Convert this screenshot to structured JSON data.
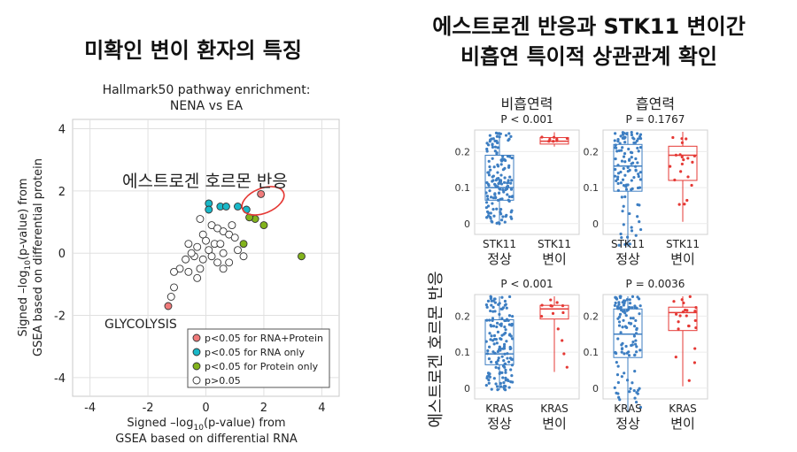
{
  "left_title": "미확인 변이 환자의 특징",
  "right_title_line1": "에스트로겐 반응과 STK11 변이간",
  "right_title_line2": "비흡연 특이적 상관관계 확인",
  "chart_data": [
    {
      "type": "scatter",
      "title_line1": "Hallmark50 pathway enrichment:",
      "title_line2": "NENA vs EA",
      "xlabel_line1": "Signed –log",
      "xlabel_sub": "10",
      "xlabel_line1_end": "(p-value) from",
      "xlabel_line2": "GSEA based on differential RNA",
      "ylabel_line1": "Signed –log",
      "ylabel_sub": "10",
      "ylabel_line1_end": "(p-value) from",
      "ylabel_line2": "GSEA based on differential protein",
      "xlim": [
        -4.6,
        4.6
      ],
      "ylim": [
        -4.6,
        4.3
      ],
      "xticks": [
        -4,
        -2,
        0,
        2,
        4
      ],
      "yticks": [
        -4,
        -2,
        0,
        2,
        4
      ],
      "grid": true,
      "colors": {
        "both": "#f07b7b",
        "rna": "#19b8c8",
        "protein": "#82b31c",
        "ns": "#ffffff"
      },
      "annotation_estrogen": "에스트로겐 호르몬 반응",
      "annotation_glycolysis": "GLYCOLYSIS",
      "legend_position": "bottom-right",
      "legend": [
        {
          "key": "both",
          "label": "p<0.05 for RNA+Protein"
        },
        {
          "key": "rna",
          "label": "p<0.05 for RNA only"
        },
        {
          "key": "protein",
          "label": "p<0.05 for Protein only"
        },
        {
          "key": "ns",
          "label": "p>0.05"
        }
      ],
      "points": [
        {
          "x": 1.9,
          "y": 1.9,
          "group": "both"
        },
        {
          "x": -1.3,
          "y": -1.7,
          "group": "both"
        },
        {
          "x": 0.1,
          "y": 1.6,
          "group": "rna"
        },
        {
          "x": 0.1,
          "y": 1.4,
          "group": "rna"
        },
        {
          "x": 0.5,
          "y": 1.5,
          "group": "rna"
        },
        {
          "x": 0.7,
          "y": 1.5,
          "group": "rna"
        },
        {
          "x": 1.1,
          "y": 1.5,
          "group": "rna"
        },
        {
          "x": 1.4,
          "y": 1.4,
          "group": "rna"
        },
        {
          "x": 1.7,
          "y": 1.1,
          "group": "protein"
        },
        {
          "x": 1.5,
          "y": 1.15,
          "group": "protein"
        },
        {
          "x": 2.0,
          "y": 0.9,
          "group": "protein"
        },
        {
          "x": 1.3,
          "y": 0.3,
          "group": "protein"
        },
        {
          "x": 3.3,
          "y": -0.1,
          "group": "protein"
        },
        {
          "x": -0.2,
          "y": 1.1,
          "group": "ns"
        },
        {
          "x": 0.2,
          "y": 0.9,
          "group": "ns"
        },
        {
          "x": -0.1,
          "y": 0.6,
          "group": "ns"
        },
        {
          "x": 0.4,
          "y": 0.8,
          "group": "ns"
        },
        {
          "x": 0.6,
          "y": 0.7,
          "group": "ns"
        },
        {
          "x": 0.8,
          "y": 0.6,
          "group": "ns"
        },
        {
          "x": 0.9,
          "y": 0.9,
          "group": "ns"
        },
        {
          "x": 1.0,
          "y": 0.5,
          "group": "ns"
        },
        {
          "x": 0.3,
          "y": 0.3,
          "group": "ns"
        },
        {
          "x": 0.5,
          "y": 0.3,
          "group": "ns"
        },
        {
          "x": -0.3,
          "y": 0.2,
          "group": "ns"
        },
        {
          "x": -0.6,
          "y": 0.3,
          "group": "ns"
        },
        {
          "x": 0.1,
          "y": 0.1,
          "group": "ns"
        },
        {
          "x": 0.2,
          "y": -0.1,
          "group": "ns"
        },
        {
          "x": 0.6,
          "y": 0.0,
          "group": "ns"
        },
        {
          "x": 1.1,
          "y": 0.1,
          "group": "ns"
        },
        {
          "x": -0.1,
          "y": -0.2,
          "group": "ns"
        },
        {
          "x": -0.4,
          "y": -0.1,
          "group": "ns"
        },
        {
          "x": -0.7,
          "y": -0.2,
          "group": "ns"
        },
        {
          "x": 0.4,
          "y": -0.3,
          "group": "ns"
        },
        {
          "x": 0.8,
          "y": -0.3,
          "group": "ns"
        },
        {
          "x": -0.2,
          "y": -0.5,
          "group": "ns"
        },
        {
          "x": -0.9,
          "y": -0.5,
          "group": "ns"
        },
        {
          "x": -0.6,
          "y": -0.6,
          "group": "ns"
        },
        {
          "x": -0.3,
          "y": -0.8,
          "group": "ns"
        },
        {
          "x": -1.1,
          "y": -0.6,
          "group": "ns"
        },
        {
          "x": 0.6,
          "y": -0.5,
          "group": "ns"
        },
        {
          "x": 1.3,
          "y": -0.1,
          "group": "ns"
        },
        {
          "x": -1.1,
          "y": -1.1,
          "group": "ns"
        },
        {
          "x": -1.2,
          "y": -1.4,
          "group": "ns"
        },
        {
          "x": 0.0,
          "y": 0.4,
          "group": "ns"
        },
        {
          "x": -0.5,
          "y": 0.0,
          "group": "ns"
        }
      ]
    },
    {
      "type": "box",
      "panels": [
        {
          "row": 0,
          "col": 0,
          "header": "비흡연력",
          "pvalue": "P < 0.001",
          "categories": [
            {
              "gene": "STK11",
              "status": "정상"
            },
            {
              "gene": "STK11",
              "status": "변이"
            }
          ],
          "groups": [
            {
              "q1": 0.065,
              "median": 0.1,
              "q3": 0.19,
              "whisker_low": -0.005,
              "whisker_high": 0.255,
              "n": 150,
              "color": "#3d7ec2"
            },
            {
              "q1": 0.221,
              "median": 0.229,
              "q3": 0.239,
              "whisker_low": 0.214,
              "whisker_high": 0.254,
              "n": 8,
              "color": "#e53935"
            }
          ]
        },
        {
          "row": 0,
          "col": 1,
          "header": "흡연력",
          "pvalue": "P = 0.1767",
          "categories": [
            {
              "gene": "STK11",
              "status": "정상"
            },
            {
              "gene": "STK11",
              "status": "변이"
            }
          ],
          "groups": [
            {
              "q1": 0.09,
              "median": 0.16,
              "q3": 0.22,
              "whisker_low": -0.065,
              "whisker_high": 0.255,
              "n": 110,
              "color": "#3d7ec2"
            },
            {
              "q1": 0.12,
              "median": 0.19,
              "q3": 0.215,
              "whisker_low": 0.005,
              "whisker_high": 0.255,
              "n": 20,
              "color": "#e53935"
            }
          ]
        },
        {
          "row": 1,
          "col": 0,
          "header": "",
          "pvalue": "P < 0.001",
          "categories": [
            {
              "gene": "KRAS",
              "status": "정상"
            },
            {
              "gene": "KRAS",
              "status": "변이"
            }
          ],
          "groups": [
            {
              "q1": 0.065,
              "median": 0.095,
              "q3": 0.19,
              "whisker_low": -0.005,
              "whisker_high": 0.255,
              "n": 150,
              "color": "#3d7ec2"
            },
            {
              "q1": 0.192,
              "median": 0.22,
              "q3": 0.23,
              "whisker_low": 0.045,
              "whisker_high": 0.255,
              "n": 13,
              "color": "#e53935"
            }
          ]
        },
        {
          "row": 1,
          "col": 1,
          "header": "",
          "pvalue": "P = 0.0036",
          "categories": [
            {
              "gene": "KRAS",
              "status": "정상"
            },
            {
              "gene": "KRAS",
              "status": "변이"
            }
          ],
          "groups": [
            {
              "q1": 0.085,
              "median": 0.15,
              "q3": 0.22,
              "whisker_low": -0.065,
              "whisker_high": 0.255,
              "n": 110,
              "color": "#3d7ec2"
            },
            {
              "q1": 0.16,
              "median": 0.21,
              "q3": 0.225,
              "whisker_low": 0.005,
              "whisker_high": 0.255,
              "n": 22,
              "color": "#e53935"
            }
          ]
        }
      ],
      "yticks": [
        0.0,
        0.1,
        0.2
      ],
      "ylabel": "에스트로겐 호르몬 반응"
    }
  ]
}
